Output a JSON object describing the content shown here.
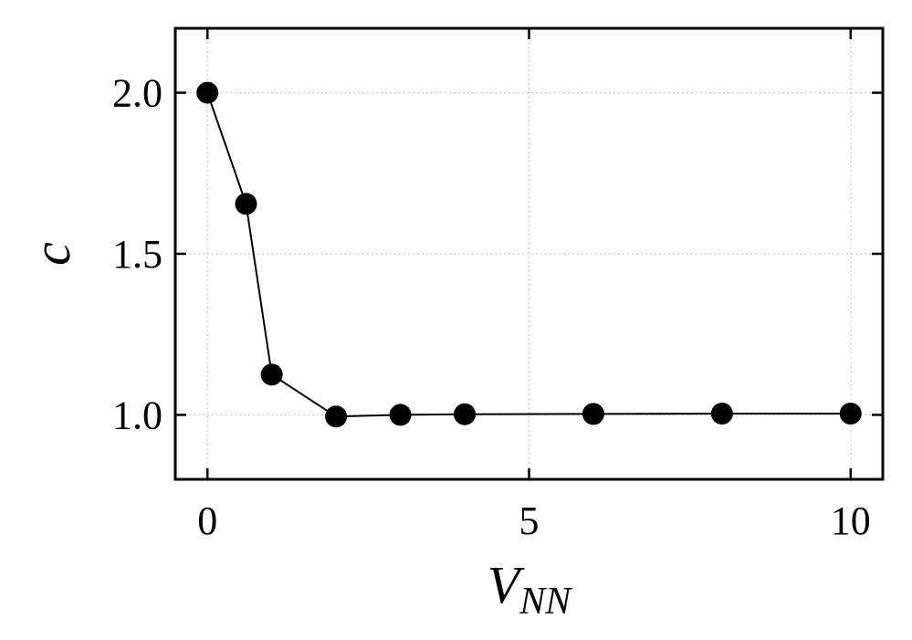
{
  "chart_data": {
    "type": "line",
    "xlabel": "V",
    "xlabel_subscript": "NN",
    "ylabel": "c",
    "xlim": [
      -0.5,
      10.5
    ],
    "ylim": [
      0.8,
      2.2
    ],
    "x_ticks": [
      0,
      5,
      10
    ],
    "y_ticks": [
      1.0,
      1.5,
      2.0
    ],
    "x_tick_labels": [
      "0",
      "5",
      "10"
    ],
    "y_tick_labels": [
      "1.0",
      "1.5",
      "2.0"
    ],
    "grid": true,
    "series": [
      {
        "x": [
          0,
          0.6,
          1.0,
          2.0,
          3.0,
          4.0,
          6.0,
          8.0,
          10.0
        ],
        "y": [
          2.0,
          1.655,
          1.125,
          0.995,
          1.0,
          1.002,
          1.003,
          1.004,
          1.004
        ],
        "color": "#000000",
        "marker": "circle"
      }
    ]
  }
}
